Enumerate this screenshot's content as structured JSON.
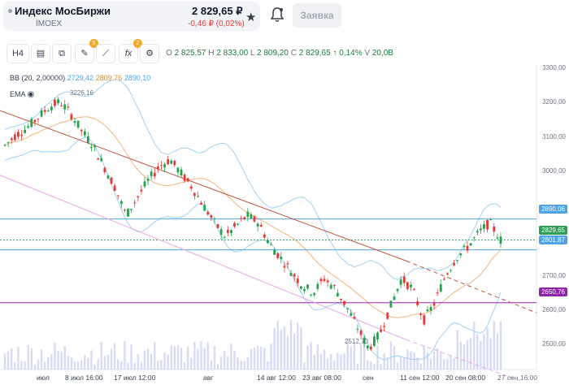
{
  "ticker": {
    "name": "Индекс МосБиржи",
    "code": "IMOEX",
    "price": "2 829,65 ₽",
    "change": "-0,46 ₽ (0,02%)",
    "order_label": "Заявка"
  },
  "toolbar": {
    "timeframe": "H4",
    "drawing_badge": "5",
    "indicator_badge": "2",
    "ohlc": {
      "o_label": "O",
      "o": "2 825,57",
      "h_label": "H",
      "h": "2 833,00",
      "l_label": "L",
      "l": "2 809,20",
      "c_label": "C",
      "c": "2 829,65",
      "change": "↑ 0,14%",
      "v_label": "V",
      "v": "20,0B"
    }
  },
  "indicators": {
    "bb": {
      "label": "BB",
      "params": "(20, 2,00000)",
      "lower": "2729,42",
      "middle": "2809,76",
      "upper": "2890,10"
    },
    "ema": {
      "label": "EMA"
    }
  },
  "colors": {
    "bull": "#22a34a",
    "bear": "#e53935",
    "bb_band": "#9fd0f2",
    "bb_middle": "#f3b37a",
    "trend_red": "#c0533b",
    "trend_pink": "#e6a6e6",
    "level_blue": "#4ea3e8",
    "level_purple": "#9c27b0"
  },
  "chart_data": {
    "type": "candlestick",
    "timeframe": "H4",
    "ylim": [
      2460,
      3330
    ],
    "y_ticks": [
      "3300,00",
      "3200,00",
      "3100,00",
      "3000,00",
      "2700,00",
      "2600,00",
      "2500,00"
    ],
    "x_ticks": [
      "июл",
      "8 июл 16:00",
      "17 июл 12:00",
      "авг",
      "14 авг 12:00",
      "23 авг 08:00",
      "сен",
      "11 сен 12:00",
      "20 сен 08:00",
      "27 сен 16:00"
    ],
    "price_tags": {
      "bb_upper": "2890,06",
      "last": "2829,65",
      "bb_lower_ref": "2801,87",
      "support": "2650,76"
    },
    "annotations": {
      "high_label": "3226,16",
      "high_value": 3226.16,
      "low_label": "2512,70",
      "low_value": 2512.7
    },
    "horizontal_levels": [
      2890.06,
      2801.87,
      2650.76
    ],
    "close_path": [
      3100,
      3130,
      3150,
      3180,
      3210,
      3225,
      3190,
      3140,
      3100,
      3040,
      2980,
      2900,
      2950,
      3000,
      3040,
      3060,
      3020,
      2980,
      2930,
      2880,
      2840,
      2870,
      2900,
      2880,
      2820,
      2780,
      2740,
      2700,
      2680,
      2720,
      2690,
      2640,
      2580,
      2520,
      2560,
      2640,
      2720,
      2690,
      2600,
      2650,
      2730,
      2780,
      2810,
      2850,
      2880,
      2830
    ]
  }
}
